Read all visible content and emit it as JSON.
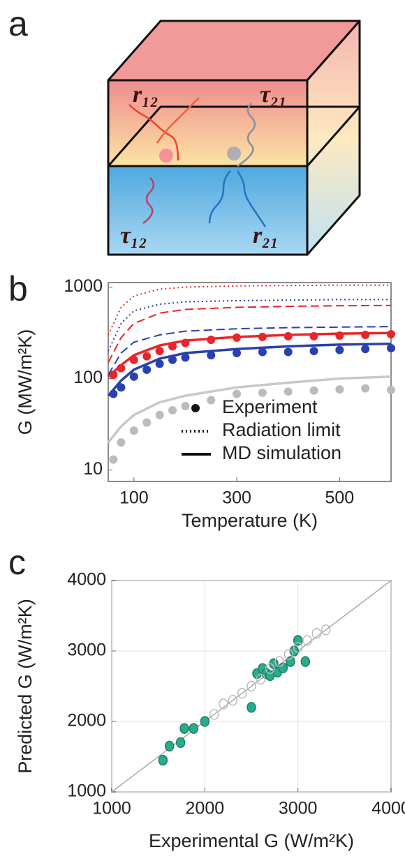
{
  "panel_labels": [
    "a",
    "b",
    "c"
  ],
  "diagram": {
    "labels": [
      "r₁₂",
      "τ₂₁",
      "τ₁₂",
      "r₂₁"
    ]
  },
  "chart_data": [
    {
      "type": "line",
      "xlabel": "Temperature (K)",
      "ylabel": "G (MW/m²K)",
      "xlim": [
        50,
        600
      ],
      "xticks": [
        100,
        300,
        500
      ],
      "ylim": [
        7.5,
        1120
      ],
      "yticks": [
        10,
        100,
        1000
      ],
      "log_y": true,
      "legend_position": "lower right",
      "legend": [
        {
          "label": "Experiment",
          "style": "marker"
        },
        {
          "label": "Radiation limit",
          "style": "dotted"
        },
        {
          "label": "MD simulation",
          "style": "solid"
        }
      ],
      "series": [
        {
          "color": "#e8262a",
          "style": "marker",
          "x": [
            60,
            75,
            100,
            125,
            150,
            175,
            200,
            250,
            300,
            350,
            400,
            450,
            500,
            550,
            600
          ],
          "values": [
            110,
            130,
            160,
            175,
            200,
            225,
            245,
            265,
            280,
            285,
            290,
            290,
            295,
            300,
            305
          ]
        },
        {
          "color": "#2a3fb0",
          "style": "marker",
          "x": [
            60,
            75,
            100,
            125,
            150,
            175,
            200,
            250,
            300,
            350,
            400,
            450,
            500,
            550,
            600
          ],
          "values": [
            68,
            80,
            105,
            125,
            145,
            160,
            170,
            180,
            190,
            195,
            195,
            200,
            205,
            210,
            215
          ]
        },
        {
          "color": "#bbbbbb",
          "style": "marker",
          "x": [
            60,
            75,
            100,
            125,
            150,
            175,
            200,
            250,
            300,
            350,
            400,
            450,
            500,
            550,
            600
          ],
          "values": [
            13,
            20,
            27,
            33,
            40,
            45,
            50,
            58,
            68,
            70,
            72,
            74,
            76,
            78,
            75
          ]
        },
        {
          "color": "#e8262a",
          "style": "solid",
          "x": [
            50,
            75,
            100,
            150,
            200,
            300,
            400,
            500,
            600
          ],
          "values": [
            105,
            140,
            180,
            230,
            260,
            285,
            300,
            310,
            315
          ]
        },
        {
          "color": "#2a3fb0",
          "style": "solid",
          "x": [
            50,
            75,
            100,
            150,
            200,
            300,
            400,
            500,
            600
          ],
          "values": [
            65,
            95,
            125,
            165,
            190,
            210,
            225,
            235,
            240
          ]
        },
        {
          "color": "#c8c8c8",
          "style": "solid",
          "x": [
            50,
            75,
            100,
            150,
            200,
            300,
            400,
            500,
            600
          ],
          "values": [
            20,
            30,
            40,
            55,
            65,
            80,
            90,
            100,
            105
          ]
        },
        {
          "color": "#e8262a",
          "style": "dashed",
          "x": [
            50,
            75,
            100,
            150,
            200,
            300,
            400,
            500,
            600
          ],
          "values": [
            150,
            280,
            400,
            520,
            570,
            600,
            615,
            625,
            630
          ]
        },
        {
          "color": "#2a3fb0",
          "style": "dashed",
          "x": [
            50,
            75,
            100,
            150,
            200,
            300,
            400,
            500,
            600
          ],
          "values": [
            110,
            190,
            250,
            300,
            330,
            350,
            360,
            365,
            370
          ]
        },
        {
          "color": "#e8262a",
          "style": "dotted",
          "x": [
            50,
            75,
            100,
            150,
            200,
            300,
            400,
            500,
            600
          ],
          "values": [
            300,
            600,
            800,
            950,
            1000,
            1030,
            1040,
            1050,
            1050
          ]
        },
        {
          "color": "#2a3fb0",
          "style": "dotted",
          "x": [
            50,
            75,
            100,
            150,
            200,
            300,
            400,
            500,
            600
          ],
          "values": [
            200,
            400,
            550,
            650,
            690,
            710,
            720,
            730,
            730
          ]
        }
      ]
    },
    {
      "type": "scatter",
      "xlabel": "Experimental G (W/m²K)",
      "ylabel": "Predicted G (W/m²K)",
      "xlim": [
        1000,
        4000
      ],
      "xticks": [
        1000,
        2000,
        3000,
        4000
      ],
      "ylim": [
        1000,
        4000
      ],
      "yticks": [
        1000,
        2000,
        3000,
        4000
      ],
      "grid": true,
      "diagonal": true,
      "series": [
        {
          "color": "#2aab8e",
          "filled": true,
          "x": [
            1550,
            1620,
            1740,
            1780,
            1880,
            2000,
            2500,
            2560,
            2620,
            2660,
            2700,
            2740,
            2780,
            2840,
            2920,
            2960,
            3000,
            3080
          ],
          "values": [
            1450,
            1650,
            1700,
            1900,
            1900,
            2000,
            2200,
            2680,
            2750,
            2680,
            2650,
            2820,
            2700,
            2760,
            2850,
            3000,
            3150,
            2850
          ]
        },
        {
          "color": "#bbbbbb",
          "filled": false,
          "x": [
            2100,
            2200,
            2300,
            2400,
            2500,
            2600,
            2700,
            2800,
            2900,
            3000,
            3100,
            3200,
            3300
          ],
          "values": [
            2100,
            2250,
            2300,
            2400,
            2500,
            2600,
            2750,
            2850,
            2950,
            3050,
            3150,
            3250,
            3300
          ]
        }
      ]
    }
  ]
}
